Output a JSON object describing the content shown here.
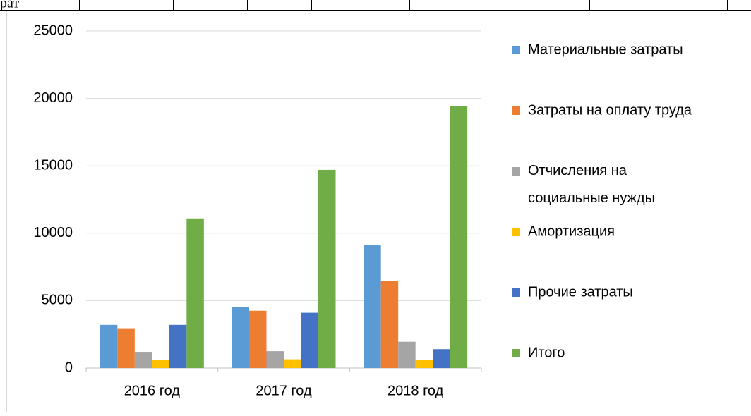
{
  "table_fragment": "рат",
  "chart_data": {
    "type": "bar",
    "categories": [
      "2016 год",
      "2017 год",
      "2018 год"
    ],
    "series": [
      {
        "name": "Материальные затраты",
        "color": "#5b9bd5",
        "values": [
          3200,
          4500,
          9100
        ]
      },
      {
        "name": "Затраты на оплату труда",
        "color": "#ed7d31",
        "values": [
          2950,
          4250,
          6450
        ]
      },
      {
        "name": "Отчисления на социальные нужды",
        "color": "#a5a5a5",
        "values": [
          1200,
          1250,
          1950
        ]
      },
      {
        "name": "Амортизация",
        "color": "#ffc000",
        "values": [
          600,
          650,
          600
        ]
      },
      {
        "name": "Прочие затраты",
        "color": "#4472c4",
        "values": [
          3200,
          4100,
          1400
        ]
      },
      {
        "name": "Итого",
        "color": "#70ad47",
        "values": [
          11100,
          14700,
          19450
        ]
      }
    ],
    "ylim": [
      0,
      25000
    ],
    "yticks": [
      0,
      5000,
      10000,
      15000,
      20000,
      25000
    ],
    "grid": true,
    "legend": "right"
  }
}
